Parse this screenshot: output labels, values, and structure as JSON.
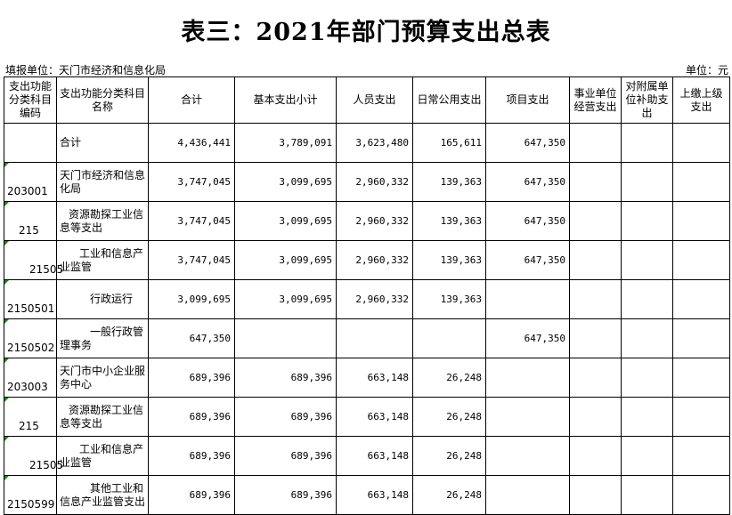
{
  "title": "表三：2021年部门预算支出总表",
  "unit_left": "填报单位：天门市经济和信息化局",
  "unit_right": "单位：元",
  "headers": {
    "code": "支出功能分类科目编码",
    "name": "支出功能分类科目名称",
    "total": "合计",
    "basic": "基本支出小计",
    "personnel": "人员支出",
    "public": "日常公用支出",
    "project": "项目支出",
    "business": "事业单位经营支出",
    "subsidy": "对附属单位补助支出",
    "upper": "上缴上级支出"
  },
  "rows": [
    {
      "code": "",
      "name": "合计",
      "total": "4,436,441",
      "basic": "3,789,091",
      "personnel": "3,623,480",
      "public": "165,611",
      "project": "647,350"
    },
    {
      "code": "203001",
      "name": "天门市经济和信息化局",
      "total": "3,747,045",
      "basic": "3,099,695",
      "personnel": "2,960,332",
      "public": "139,363",
      "project": "647,350"
    },
    {
      "code": "215",
      "name": "资源勘探工业信息等支出",
      "total": "3,747,045",
      "basic": "3,099,695",
      "personnel": "2,960,332",
      "public": "139,363",
      "project": "647,350"
    },
    {
      "code": "21505",
      "name": "工业和信息产业监管",
      "total": "3,747,045",
      "basic": "3,099,695",
      "personnel": "2,960,332",
      "public": "139,363",
      "project": "647,350"
    },
    {
      "code": "2150501",
      "name": "行政运行",
      "total": "3,099,695",
      "basic": "3,099,695",
      "personnel": "2,960,332",
      "public": "139,363",
      "project": ""
    },
    {
      "code": "2150502",
      "name": "一般行政管理事务",
      "total": "647,350",
      "basic": "",
      "personnel": "",
      "public": "",
      "project": "647,350"
    },
    {
      "code": "203003",
      "name": "天门市中小企业服务中心",
      "total": "689,396",
      "basic": "689,396",
      "personnel": "663,148",
      "public": "26,248",
      "project": ""
    },
    {
      "code": "215",
      "name": "资源勘探工业信息等支出",
      "total": "689,396",
      "basic": "689,396",
      "personnel": "663,148",
      "public": "26,248",
      "project": ""
    },
    {
      "code": "21505",
      "name": "工业和信息产业监管",
      "total": "689,396",
      "basic": "689,396",
      "personnel": "663,148",
      "public": "26,248",
      "project": ""
    },
    {
      "code": "2150599",
      "name": "其他工业和信息产业监管支出",
      "total": "689,396",
      "basic": "689,396",
      "personnel": "663,148",
      "public": "26,248",
      "project": ""
    }
  ]
}
